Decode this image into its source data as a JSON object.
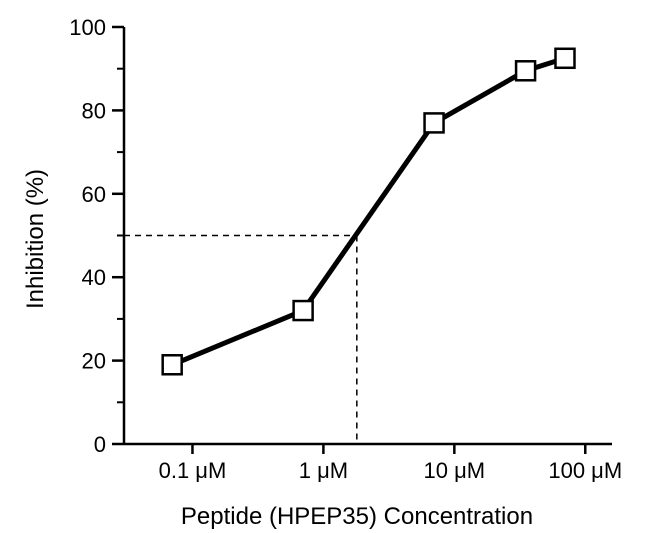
{
  "chart_data": {
    "type": "line",
    "xlabel": "Peptide (HPEP35) Concentration",
    "ylabel": "Inhibition (%)",
    "x_scale": "log",
    "xlim": [
      0.03,
      160
    ],
    "ylim": [
      0,
      100
    ],
    "y_ticks": [
      0,
      20,
      40,
      60,
      80,
      100
    ],
    "y_tick_labels": [
      "0",
      "20",
      "40",
      "60",
      "80",
      "100"
    ],
    "x_ticks": [
      0.1,
      1,
      10,
      100
    ],
    "x_tick_labels": [
      "0.1 μM",
      "1 μM",
      "10 μM",
      "100 μM"
    ],
    "x_unit": "μM",
    "series": [
      {
        "marker": "open-square",
        "x": [
          0.07,
          0.7,
          7,
          35,
          70
        ],
        "y": [
          19,
          32,
          77,
          89.5,
          92.5
        ]
      }
    ],
    "annotations": [
      {
        "type": "reference-lines",
        "style": "dashed",
        "x": 1.8,
        "y": 50
      }
    ],
    "grid": false,
    "legend": "none"
  }
}
